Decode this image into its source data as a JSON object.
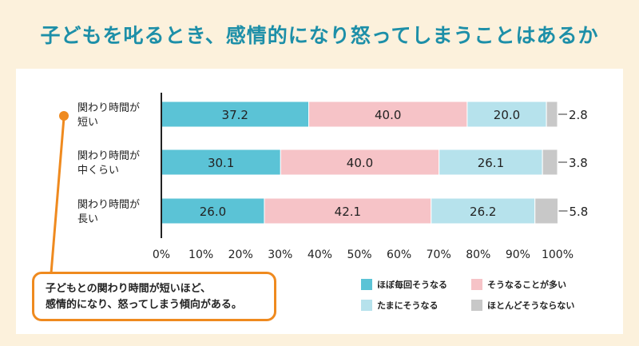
{
  "title": "子どもを叱るとき、感情的になり怒ってしまうことはあるか",
  "colors": {
    "accent": "#1d8fa8",
    "callout_border": "#ef8a1f",
    "background": "#fcf1dc",
    "series": [
      "#5bc3d6",
      "#f6c3c7",
      "#b6e2ec",
      "#c8c8c8"
    ]
  },
  "chart_data": {
    "type": "bar",
    "orientation": "horizontal",
    "stacked": true,
    "categories": [
      {
        "line1": "関わり時間が",
        "line2": "短い"
      },
      {
        "line1": "関わり時間が",
        "line2": "中くらい"
      },
      {
        "line1": "関わり時間が",
        "line2": "長い"
      }
    ],
    "series": [
      {
        "name": "ほぼ毎回そうなる",
        "values": [
          37.2,
          30.1,
          26.0
        ]
      },
      {
        "name": "そうなることが多い",
        "values": [
          40.0,
          40.0,
          42.1
        ]
      },
      {
        "name": "たまにそうなる",
        "values": [
          20.0,
          26.1,
          26.2
        ]
      },
      {
        "name": "ほとんどそうならない",
        "values": [
          2.8,
          3.8,
          5.8
        ]
      }
    ],
    "value_labels": [
      [
        "37.2",
        "40.0",
        "20.0",
        "2.8"
      ],
      [
        "30.1",
        "40.0",
        "26.1",
        "3.8"
      ],
      [
        "26.0",
        "42.1",
        "26.2",
        "5.8"
      ]
    ],
    "xlim": [
      0,
      100
    ],
    "x_ticks": [
      "0%",
      "10%",
      "20%",
      "30%",
      "40%",
      "50%",
      "60%",
      "70%",
      "80%",
      "90%",
      "100%"
    ],
    "grid": false,
    "legend_position": "bottom-right"
  },
  "callout": {
    "line1": "子どもとの関わり時間が短いほど、",
    "line2": "感情的になり、怒ってしまう傾向がある。"
  }
}
